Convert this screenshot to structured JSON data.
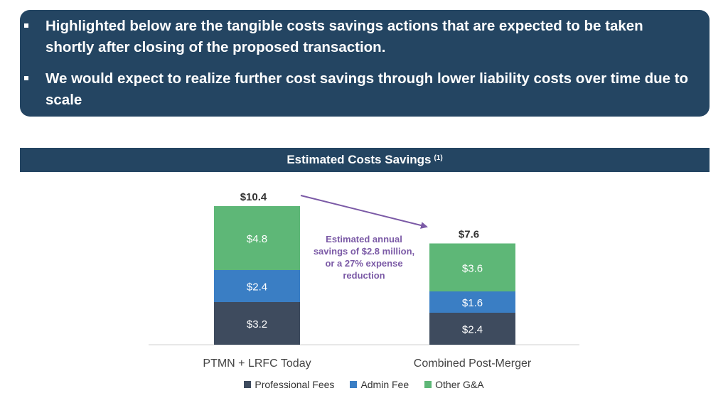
{
  "banner": {
    "bullets": [
      "Highlighted below are the tangible costs savings actions that are expected to be taken shortly after closing of the proposed transaction.",
      "We would expect to realize further cost savings through lower liability costs over time due to scale"
    ]
  },
  "chart_header": {
    "title": "Estimated Costs Savings",
    "footnote_marker": "(1)"
  },
  "chart_data": {
    "type": "bar",
    "stacked": true,
    "categories": [
      "PTMN + LRFC Today",
      "Combined Post-Merger"
    ],
    "series": [
      {
        "name": "Professional Fees",
        "values": [
          3.2,
          2.4
        ],
        "labels": [
          "$3.2",
          "$2.4"
        ],
        "color": "#3e4b5e"
      },
      {
        "name": "Admin Fee",
        "values": [
          2.4,
          1.6
        ],
        "labels": [
          "$2.4",
          "$1.6"
        ],
        "color": "#3a7ec4"
      },
      {
        "name": "Other G&A",
        "values": [
          4.8,
          3.6
        ],
        "labels": [
          "$4.8",
          "$3.6"
        ],
        "color": "#5eb777"
      }
    ],
    "totals": [
      10.4,
      7.6
    ],
    "total_labels": [
      "$10.4",
      "$7.6"
    ],
    "annotation": {
      "lines": [
        "Estimated annual",
        "savings of $2.8 million,",
        "or a 27% expense",
        "reduction"
      ],
      "color": "#7b5aa6"
    },
    "legend_position": "bottom",
    "grid": false,
    "ylim": [
      0,
      10.4
    ]
  }
}
